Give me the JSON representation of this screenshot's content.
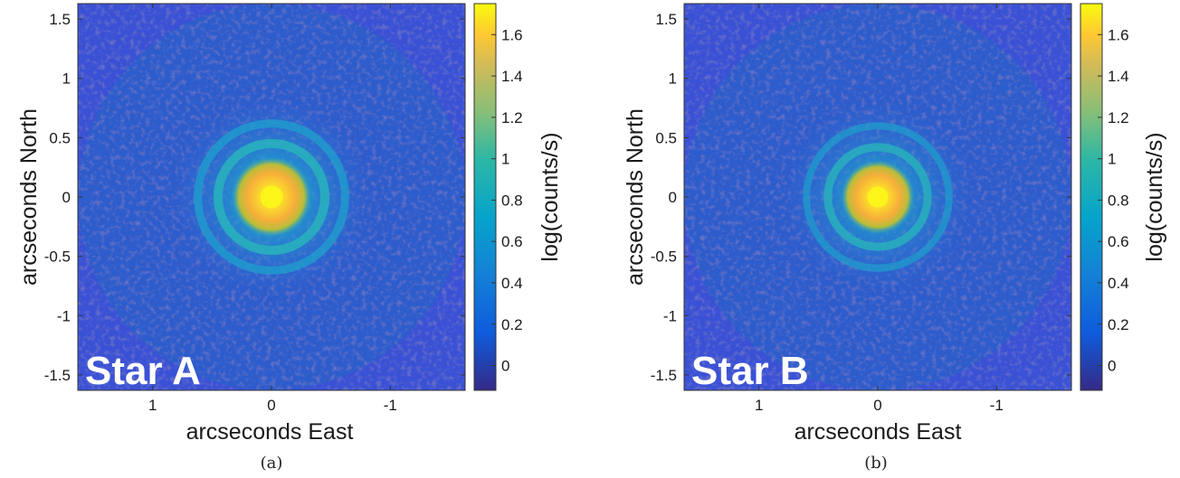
{
  "chart_data": [
    {
      "type": "heatmap",
      "panel_caption": "(a)",
      "star_label": "Star A",
      "xlabel": "arcseconds East",
      "ylabel": "arcseconds North",
      "colorbar_label": "log(counts/s)",
      "colormap": "parula",
      "x_axis_direction": "reversed",
      "xlim": [
        1.63,
        -1.63
      ],
      "ylim": [
        -1.63,
        1.63
      ],
      "x_ticks": [
        1,
        0,
        -1
      ],
      "x_tick_labels": [
        "1",
        "0",
        "-1"
      ],
      "y_ticks": [
        1.5,
        1,
        0.5,
        0,
        -0.5,
        -1,
        -1.5
      ],
      "y_tick_labels": [
        "1.5",
        "1",
        "0.5",
        "0",
        "-0.5",
        "-1",
        "-1.5"
      ],
      "colorbar_ticks": [
        1.6,
        1.4,
        1.2,
        1,
        0.8,
        0.6,
        0.4,
        0.2,
        0
      ],
      "colorbar_tick_labels": [
        "1.6",
        "1.4",
        "1.2",
        "1",
        "0.8",
        "0.6",
        "0.4",
        "0.2",
        "0"
      ],
      "colorbar_range": [
        -0.12,
        1.75
      ],
      "field_of_view_radius": 1.63,
      "peak_value": 1.72,
      "core_radius": 0.25,
      "rings": [
        {
          "radius": 0.45,
          "value": 0.55
        },
        {
          "radius": 0.62,
          "value": 0.4
        }
      ],
      "background_value": 0.05,
      "colors": {
        "background": "#3a51d6",
        "low": "#2b2b8c",
        "mid": "#1fa5c7",
        "high": "#f8e01c"
      }
    },
    {
      "type": "heatmap",
      "panel_caption": "(b)",
      "star_label": "Star B",
      "xlabel": "arcseconds East",
      "ylabel": "arcseconds North",
      "colorbar_label": "log(counts/s)",
      "colormap": "parula",
      "x_axis_direction": "reversed",
      "xlim": [
        1.63,
        -1.63
      ],
      "ylim": [
        -1.63,
        1.63
      ],
      "x_ticks": [
        1,
        0,
        -1
      ],
      "x_tick_labels": [
        "1",
        "0",
        "-1"
      ],
      "y_ticks": [
        1.5,
        1,
        0.5,
        0,
        -0.5,
        -1,
        -1.5
      ],
      "y_tick_labels": [
        "1.5",
        "1",
        "0.5",
        "0",
        "-0.5",
        "-1",
        "-1.5"
      ],
      "colorbar_ticks": [
        1.6,
        1.4,
        1.2,
        1,
        0.8,
        0.6,
        0.4,
        0.2,
        0
      ],
      "colorbar_tick_labels": [
        "1.6",
        "1.4",
        "1.2",
        "1",
        "0.8",
        "0.6",
        "0.4",
        "0.2",
        "0"
      ],
      "colorbar_range": [
        -0.12,
        1.75
      ],
      "field_of_view_radius": 1.63,
      "peak_value": 1.68,
      "core_radius": 0.23,
      "rings": [
        {
          "radius": 0.42,
          "value": 0.45
        },
        {
          "radius": 0.6,
          "value": 0.35
        }
      ],
      "background_value": 0.05,
      "colors": {
        "background": "#3a51d6",
        "low": "#2b2b8c",
        "mid": "#1fa5c7",
        "high": "#f8e01c"
      }
    }
  ]
}
